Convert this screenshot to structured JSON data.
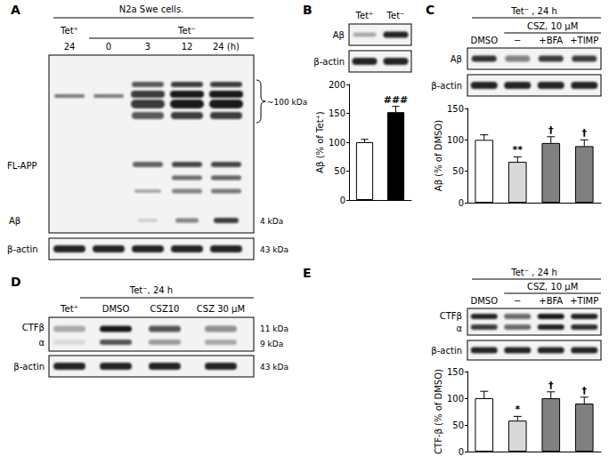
{
  "figure": {
    "A": {
      "label": "A",
      "header": "N2a Swe cells.",
      "groups": [
        "Tet⁺",
        "Tet⁻"
      ],
      "lanes": [
        "24",
        "0",
        "3",
        "12",
        "24 (h)"
      ],
      "rows": [
        {
          "left": "FL-APP",
          "right": "~100 kDa"
        },
        {
          "left": "Aβ",
          "right": "4 kDa"
        },
        {
          "left": "β-actin",
          "right": "43 kDa"
        }
      ]
    },
    "B": {
      "label": "B",
      "lanes": [
        "Tet⁺",
        "Tet⁻"
      ],
      "rows": [
        {
          "left": "Aβ"
        },
        {
          "left": "β-actin"
        }
      ]
    },
    "C": {
      "label": "C",
      "header": "Tet⁻ , 24 h",
      "subheader": "CSZ, 10 μM",
      "lanes": [
        "DMSO",
        "−",
        "+BFA",
        "+TIMP"
      ],
      "rows": [
        {
          "left": "Aβ"
        },
        {
          "left": "β-actin"
        }
      ]
    },
    "D": {
      "label": "D",
      "header": "Tet⁻, 24 h",
      "lanes": [
        "Tet⁺",
        "DMSO",
        "CSZ10",
        "CSZ 30 μM"
      ],
      "rows": [
        {
          "left": "CTFβ",
          "right": "11 kDa"
        },
        {
          "left": "α",
          "right": "9 kDa"
        },
        {
          "left": "β-actin",
          "right": "43 kDa"
        }
      ]
    },
    "E": {
      "label": "E",
      "header": "Tet⁻ , 24 h",
      "subheader": "CSZ, 10 μM",
      "lanes": [
        "DMSO",
        "−",
        "+BFA",
        "+TIMP"
      ],
      "rows": [
        {
          "left": "CTFβ"
        },
        {
          "left": "α"
        },
        {
          "left": "β-actin"
        }
      ]
    }
  },
  "chart_data": [
    {
      "type": "bar",
      "ylabel": "Aβ (% of Tet⁺)",
      "categories": [
        null,
        null
      ],
      "values": [
        100,
        152
      ],
      "errors": [
        5,
        10
      ],
      "colors": [
        "#ffffff",
        "#000000"
      ],
      "annotations": [
        null,
        "###"
      ],
      "ylim": [
        0,
        200
      ],
      "yticks": [
        0,
        50,
        100,
        150,
        200
      ],
      "grid": false,
      "tick_labels": "y"
    },
    {
      "type": "bar",
      "ylabel": "Aβ (% of DMSO)",
      "categories": [
        null,
        null,
        null,
        null
      ],
      "values": [
        100,
        65,
        95,
        90
      ],
      "errors": [
        8,
        8,
        10,
        10
      ],
      "colors": [
        "#ffffff",
        "#d9d9d9",
        "#808080",
        "#808080"
      ],
      "annotations": [
        null,
        "**",
        "†",
        "†"
      ],
      "ylim": [
        0,
        150
      ],
      "yticks": [
        0,
        50,
        100,
        150
      ],
      "grid": false,
      "tick_labels": "y"
    },
    {
      "type": "bar",
      "ylabel": "CTF-β (% of DMSO)",
      "categories": [
        null,
        null,
        null,
        null
      ],
      "values": [
        100,
        58,
        100,
        90
      ],
      "errors": [
        13,
        8,
        12,
        12
      ],
      "colors": [
        "#ffffff",
        "#d9d9d9",
        "#808080",
        "#808080"
      ],
      "annotations": [
        null,
        "*",
        "†",
        "†"
      ],
      "ylim": [
        0,
        150
      ],
      "yticks": [
        0,
        50,
        100,
        150
      ],
      "grid": false,
      "tick_labels": "y"
    }
  ]
}
